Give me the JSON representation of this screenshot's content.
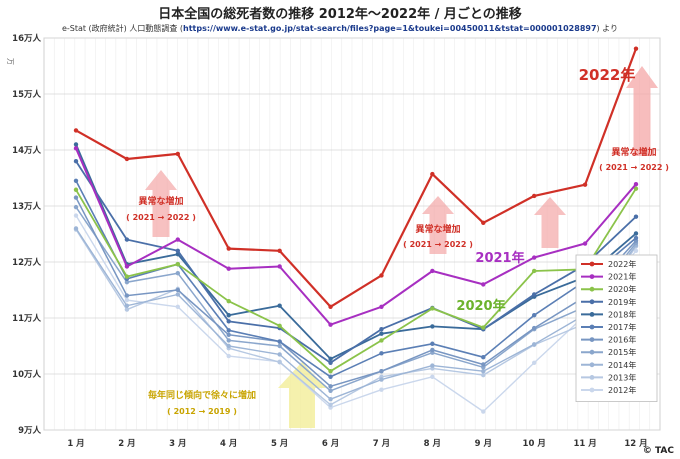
{
  "page": {
    "title": "日本全国の総死者数の推移 2012年～2022年 / 月ごとの推移",
    "subtitle_prefix": "e-Stat (政府統計) 人口動態調査 (",
    "subtitle_url": "https://www.e-stat.go.jp/stat-search/files?page=1&toukei=00450011&tstat=000001028897",
    "subtitle_suffix": ") より",
    "copyright": "© TAC"
  },
  "chart_data": {
    "type": "line",
    "title": "日本全国の総死者数の推移 2012年～2022年 / 月ごとの推移",
    "ylabel": "万",
    "xlabel": "",
    "categories": [
      "1 月",
      "2 月",
      "3 月",
      "4 月",
      "5 月",
      "6 月",
      "7 月",
      "8 月",
      "9 月",
      "10 月",
      "11 月",
      "12 月"
    ],
    "ylim": [
      9,
      16
    ],
    "y_ticks": [
      9,
      10,
      11,
      12,
      13,
      14,
      15,
      16
    ],
    "y_tick_labels": [
      "9万人",
      "10万人",
      "11万人",
      "12万人",
      "13万人",
      "14万人",
      "15万人",
      "16万人"
    ],
    "grid": true,
    "legend_position": "bottom-right",
    "series": [
      {
        "name": "2022年",
        "color": "#d03027",
        "width": 2.2,
        "values": [
          14.35,
          13.84,
          13.93,
          12.24,
          12.2,
          11.2,
          11.76,
          13.57,
          12.7,
          13.18,
          13.38,
          15.81
        ]
      },
      {
        "name": "2021年",
        "color": "#a72fc1",
        "width": 2.0,
        "values": [
          14.03,
          11.92,
          12.4,
          11.88,
          11.92,
          10.88,
          11.2,
          11.84,
          11.6,
          12.08,
          12.33,
          13.39
        ]
      },
      {
        "name": "2020年",
        "color": "#8bc34a",
        "width": 1.8,
        "values": [
          13.29,
          11.74,
          11.96,
          11.3,
          10.86,
          10.05,
          10.6,
          11.17,
          10.83,
          11.84,
          11.87,
          13.31
        ]
      },
      {
        "name": "2019年",
        "color": "#4a6fa8",
        "width": 1.8,
        "values": [
          13.8,
          12.4,
          12.2,
          10.94,
          10.82,
          10.2,
          10.8,
          11.18,
          10.8,
          11.42,
          11.95,
          12.81
        ]
      },
      {
        "name": "2018年",
        "color": "#3a6b9a",
        "width": 1.8,
        "values": [
          14.1,
          11.96,
          12.14,
          11.05,
          11.22,
          10.27,
          10.72,
          10.85,
          10.8,
          11.38,
          11.73,
          12.51
        ]
      },
      {
        "name": "2017年",
        "color": "#5b7fb5",
        "width": 1.6,
        "values": [
          13.45,
          11.7,
          11.96,
          10.78,
          10.58,
          9.95,
          10.37,
          10.54,
          10.3,
          11.05,
          11.66,
          12.43
        ]
      },
      {
        "name": "2016年",
        "color": "#7896c2",
        "width": 1.5,
        "values": [
          13.15,
          11.4,
          11.5,
          10.7,
          10.58,
          9.78,
          10.05,
          10.43,
          10.17,
          10.82,
          11.38,
          12.38
        ]
      },
      {
        "name": "2015年",
        "color": "#8aa6cc",
        "width": 1.5,
        "values": [
          12.98,
          11.64,
          11.8,
          10.6,
          10.5,
          9.7,
          10.05,
          10.38,
          10.12,
          10.8,
          11.2,
          12.34
        ]
      },
      {
        "name": "2014年",
        "color": "#9db5d6",
        "width": 1.4,
        "values": [
          12.6,
          11.22,
          11.42,
          10.5,
          10.35,
          9.55,
          9.9,
          10.15,
          10.05,
          10.53,
          11.06,
          12.3
        ]
      },
      {
        "name": "2013年",
        "color": "#b6c8e2",
        "width": 1.4,
        "values": [
          12.58,
          11.15,
          11.52,
          10.46,
          10.21,
          9.45,
          9.95,
          10.1,
          9.98,
          10.52,
          10.9,
          12.28
        ]
      },
      {
        "name": "2012年",
        "color": "#cad7ec",
        "width": 1.4,
        "values": [
          12.83,
          11.32,
          11.2,
          10.32,
          10.22,
          9.4,
          9.72,
          9.95,
          9.33,
          10.2,
          11.05,
          12.2
        ]
      }
    ],
    "annotations": [
      {
        "text": "2022年",
        "color": "#d03027",
        "kind": "series-label"
      },
      {
        "text": "2021年",
        "color": "#a72fc1",
        "kind": "series-label"
      },
      {
        "text": "2020年",
        "color": "#6bb22c",
        "kind": "series-label"
      },
      {
        "text": "異常な増加",
        "color": "#d03027",
        "kind": "callout"
      },
      {
        "text": "( 2021 → 2022 )",
        "color": "#d03027",
        "kind": "callout-sub"
      },
      {
        "text": "異常な増加",
        "color": "#d03027",
        "kind": "callout"
      },
      {
        "text": "( 2021 → 2022 )",
        "color": "#d03027",
        "kind": "callout-sub"
      },
      {
        "text": "異常な増加",
        "color": "#d03027",
        "kind": "callout"
      },
      {
        "text": "( 2021 → 2022 )",
        "color": "#d03027",
        "kind": "callout-sub"
      },
      {
        "text": "毎年同じ傾向で徐々に増加",
        "color": "#c8a400",
        "kind": "callout"
      },
      {
        "text": "( 2012 → 2019 )",
        "color": "#c8a400",
        "kind": "callout-sub"
      }
    ]
  }
}
